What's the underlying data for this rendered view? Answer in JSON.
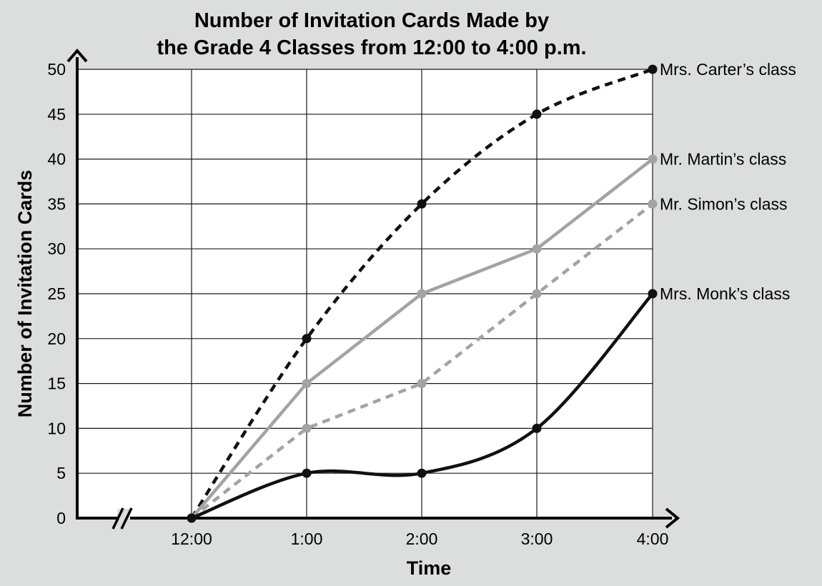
{
  "chart_data": {
    "type": "line",
    "title": [
      "Number of Invitation Cards Made by",
      "the Grade 4 Classes from 12:00 to 4:00 p.m."
    ],
    "xlabel": "Time",
    "ylabel": "Number of Invitation Cards",
    "categories": [
      "12:00",
      "1:00",
      "2:00",
      "3:00",
      "4:00"
    ],
    "yticks": [
      0,
      5,
      10,
      15,
      20,
      25,
      30,
      35,
      40,
      45,
      50
    ],
    "ylim": [
      0,
      50
    ],
    "grid": true,
    "axis_break": "x",
    "series": [
      {
        "name": "Mrs. Carter’s class",
        "values": [
          0,
          20,
          35,
          45,
          50
        ],
        "color": "#111111",
        "style": "dashed",
        "curve": "smooth"
      },
      {
        "name": "Mr. Martin’s class",
        "values": [
          0,
          15,
          25,
          30,
          40
        ],
        "color": "#a3a3a3",
        "style": "solid",
        "curve": "straight"
      },
      {
        "name": "Mr. Simon’s class",
        "values": [
          0,
          10,
          15,
          25,
          35
        ],
        "color": "#a3a3a3",
        "style": "dashed",
        "curve": "straight"
      },
      {
        "name": "Mrs. Monk’s class",
        "values": [
          0,
          5,
          5,
          10,
          25
        ],
        "color": "#111111",
        "style": "solid",
        "curve": "smooth"
      }
    ]
  }
}
